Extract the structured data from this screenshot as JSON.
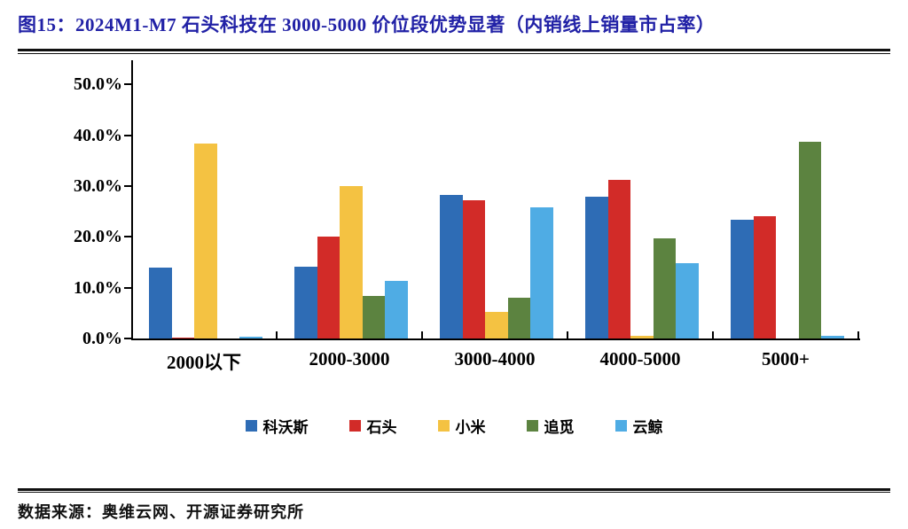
{
  "figure": {
    "title": "图15：2024M1-M7 石头科技在 3000-5000 价位段优势显著（内销线上销量市占率）",
    "source": "数据来源：奥维云网、开源证券研究所",
    "title_color": "#2121A6"
  },
  "chart_data": {
    "type": "bar",
    "title": "2024M1-M7 内销线上销量市占率（按价位段）",
    "categories": [
      "2000以下",
      "2000-3000",
      "3000-4000",
      "4000-5000",
      "5000+"
    ],
    "series": [
      {
        "name": "科沃斯",
        "color": "#2E6CB5",
        "values": [
          14.0,
          14.2,
          28.3,
          28.0,
          23.5
        ]
      },
      {
        "name": "石头",
        "color": "#D22B28",
        "values": [
          0.2,
          20.2,
          27.3,
          31.3,
          24.2
        ]
      },
      {
        "name": "小米",
        "color": "#F4C242",
        "values": [
          38.5,
          30.1,
          5.2,
          0.5,
          0.0
        ]
      },
      {
        "name": "追觅",
        "color": "#5C8340",
        "values": [
          0.0,
          8.4,
          8.0,
          19.8,
          38.8
        ]
      },
      {
        "name": "云鲸",
        "color": "#4FACE4",
        "values": [
          0.3,
          11.4,
          25.9,
          14.8,
          0.5
        ]
      }
    ],
    "xlabel": "",
    "ylabel": "",
    "ylim": [
      0,
      55
    ],
    "y_ticks": [
      "0.0%",
      "10.0%",
      "20.0%",
      "30.0%",
      "40.0%",
      "50.0%"
    ],
    "unit": "percent",
    "grid": false,
    "legend_position": "bottom"
  }
}
